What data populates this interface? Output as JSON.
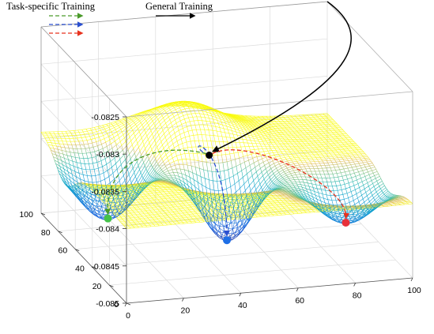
{
  "chart_data": {
    "type": "surface",
    "title": "",
    "legend": {
      "placement": "top-left",
      "task_label": "Task-specific Training",
      "general_label": "General Training",
      "task_arrow_colors": [
        "#4a9a2a",
        "#e8321e",
        "#2a4fd0"
      ],
      "general_arrow_color": "#000000"
    },
    "axes": {
      "x": {
        "range": [
          0,
          100
        ],
        "ticks": [
          "0",
          "20",
          "40",
          "60",
          "80",
          "100"
        ],
        "label": ""
      },
      "y": {
        "range": [
          0,
          100
        ],
        "ticks": [
          "0",
          "20",
          "40",
          "60",
          "80",
          "100"
        ],
        "label": ""
      },
      "z": {
        "range": [
          -0.085,
          -0.0825
        ],
        "ticks": [
          "-0.085",
          "-0.0845",
          "-0.084",
          "-0.0835",
          "-0.083",
          "-0.0825"
        ],
        "label": ""
      },
      "grid": true,
      "box": true
    },
    "surface": {
      "baseline": -0.084,
      "colormap": "parula",
      "minima": [
        {
          "x": 15,
          "y": 72,
          "depth": -0.08488,
          "width": 11,
          "color": "#44c24a"
        },
        {
          "x": 50,
          "y": 50,
          "depth": -0.08498,
          "width": 9,
          "color": "#1f6fe6"
        },
        {
          "x": 85,
          "y": 28,
          "depth": -0.08455,
          "width": 10,
          "color": "#e8303a"
        }
      ],
      "bump": {
        "x": 45,
        "y": 83,
        "height": 0.00048,
        "width": 14
      }
    },
    "trajectories": {
      "general": {
        "start": [
          100,
          100,
          -0.0825
        ],
        "end": [
          48,
          64,
          -0.08395
        ],
        "color": "#000000"
      },
      "task": [
        {
          "end": "green",
          "color": "#4a9a2a"
        },
        {
          "end": "blue",
          "color": "#2a4fd0"
        },
        {
          "end": "red",
          "color": "#e8321e"
        }
      ]
    }
  }
}
